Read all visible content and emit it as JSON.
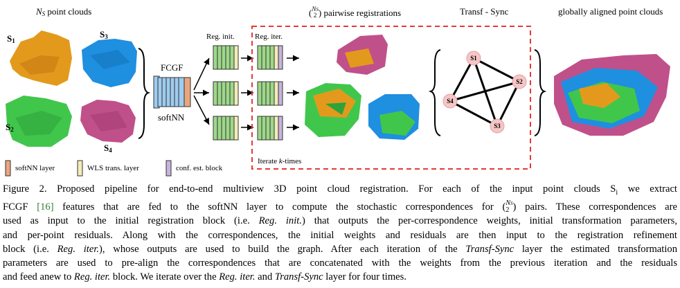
{
  "figure": {
    "headers": {
      "point_clouds": "point clouds",
      "pairwise": "pairwise registrations",
      "transf_sync": "Transf - Sync",
      "global": "globally aligned point clouds"
    },
    "scans": {
      "s1": "S",
      "s1_sub": "1",
      "s2": "S",
      "s2_sub": "2",
      "s3": "S",
      "s3_sub": "3",
      "s4": "S",
      "s4_sub": "4"
    },
    "fcgf_label": "FCGF",
    "softnn_label": "softNN",
    "reg_init_label": "Reg. init.",
    "reg_iter_label": "Reg. iter.",
    "iterate_label_prefix": "Iterate ",
    "iterate_label_k": "k",
    "iterate_label_suffix": "-times",
    "graph_nodes": [
      "S1",
      "S2",
      "S3",
      "S4"
    ],
    "legend": {
      "softnn_layer": "softNN layer",
      "wls_layer": "WLS trans. layer",
      "conf_block": "conf. est. block"
    },
    "colors": {
      "orange": "#e39a1c",
      "blue": "#1f8fe0",
      "green": "#41c64c",
      "magenta": "#c0508a",
      "node_fill": "#f6c6c6",
      "frame_red": "#e53935",
      "fcgf_blue": "#9fcbef",
      "block_green": "#9ed88a",
      "softnn_orange": "#e9a67e",
      "wls_yellow": "#f3ecb8",
      "conf_purple": "#c7b4dc"
    }
  },
  "caption": {
    "l1": "Figure 2. Proposed pipeline for end-to-end multiview 3D point cloud registration.  For each of the input point clouds S",
    "l1_sub": "i",
    "l1_end": " we extract",
    "l2_a": "FCGF ",
    "l2_cite": "[16]",
    "l2_b": " features that are fed to the softNN layer to compute the stochastic correspondences for ",
    "l2_c": " pairs. These correspondences are",
    "l3_a": "used as input to the initial registration block (i.e. ",
    "l3_em": "Reg. init.",
    "l3_b": ") that outputs the per-correspondence weights, initial transformation parameters,",
    "l4": "and per-point residuals.  Along with the correspondences, the initial weights and residuals are then input to the registration refinement",
    "l5_a": "block (i.e. ",
    "l5_em": "Reg. iter.",
    "l5_b": "), whose outputs are used to build the graph. After each iteration of the ",
    "l5_em2": "Transf-Sync",
    "l5_c": " layer the estimated transformation",
    "l6": "parameters are used to pre-align the correspondences that are concatenated with the weights from the previous iteration and the residuals",
    "l7_a": "and feed anew to ",
    "l7_em": "Reg. iter.",
    "l7_b": " block. We iterate over the ",
    "l7_em2": "Reg. iter.",
    "l7_c": " and ",
    "l7_em3": "Transf-Sync",
    "l7_d": " layer for four times."
  }
}
